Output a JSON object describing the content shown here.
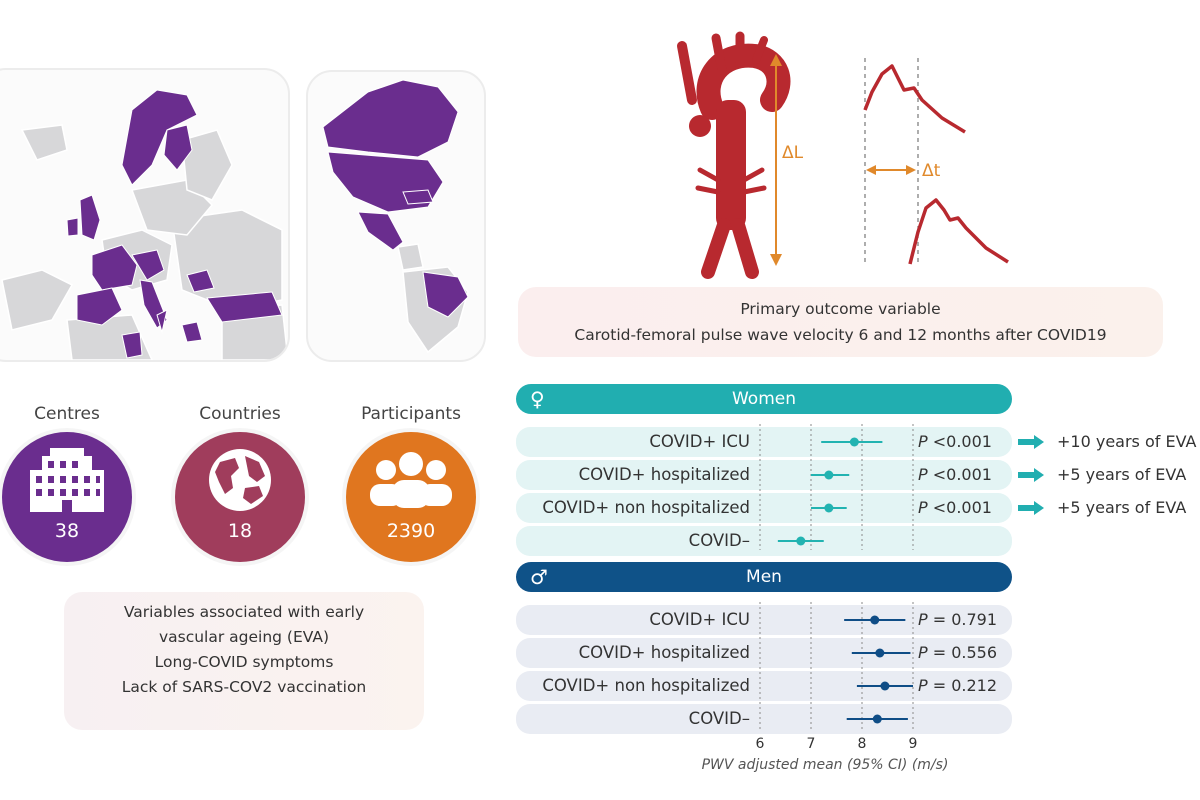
{
  "stats": [
    {
      "label": "Centres",
      "value": "38",
      "icon": "building-icon",
      "color": "#6a2d8e"
    },
    {
      "label": "Countries",
      "value": "18",
      "icon": "globe-icon",
      "color": "#a03d5c"
    },
    {
      "label": "Participants",
      "value": "2390",
      "icon": "people-icon",
      "color": "#e0761f"
    }
  ],
  "variables": {
    "line1": "Variables associated with early",
    "line2": "vascular ageing (EVA)",
    "line3": "Long-COVID symptoms",
    "line4": "Lack of SARS-COV2 vaccination"
  },
  "pwv_diagram": {
    "delta_l": "ΔL",
    "delta_t": "Δt"
  },
  "outcome": {
    "line1": "Primary outcome variable",
    "line2": "Carotid-femoral pulse wave velocity 6 and 12 months after COVID19"
  },
  "chart_data": {
    "type": "forest",
    "x_ticks": [
      "6",
      "7",
      "8",
      "9"
    ],
    "xlim": [
      5.5,
      9.5
    ],
    "xlabel": "PWV adjusted mean (95% CI) (m/s)",
    "groups": [
      {
        "name": "Women",
        "symbol": "♀",
        "header_color": "#21aeb0",
        "band_color": "#e3f4f4",
        "point_color": "#22b3b1",
        "rows": [
          {
            "label": "COVID+ ICU",
            "mean": 7.85,
            "ci": [
              7.2,
              8.4
            ],
            "p_label": "P",
            "p_value": " <0.001",
            "eva": "+10 years of EVA"
          },
          {
            "label": "COVID+ hospitalized",
            "mean": 7.35,
            "ci": [
              7.0,
              7.75
            ],
            "p_label": "P",
            "p_value": " <0.001",
            "eva": "+5 years of EVA"
          },
          {
            "label": "COVID+ non hospitalized",
            "mean": 7.35,
            "ci": [
              7.0,
              7.7
            ],
            "p_label": "P",
            "p_value": " <0.001",
            "eva": "+5 years of EVA"
          },
          {
            "label": "COVID–",
            "mean": 6.8,
            "ci": [
              6.35,
              7.25
            ],
            "p_label": "",
            "p_value": "",
            "eva": ""
          }
        ]
      },
      {
        "name": "Men",
        "symbol": "♂",
        "header_color": "#0f5288",
        "band_color": "#e9ecf3",
        "point_color": "#0f4d86",
        "rows": [
          {
            "label": "COVID+ ICU",
            "mean": 8.25,
            "ci": [
              7.65,
              8.85
            ],
            "p_label": "P",
            "p_value": " = 0.791",
            "eva": ""
          },
          {
            "label": "COVID+ hospitalized",
            "mean": 8.35,
            "ci": [
              7.8,
              8.95
            ],
            "p_label": "P",
            "p_value": " = 0.556",
            "eva": ""
          },
          {
            "label": "COVID+ non hospitalized",
            "mean": 8.45,
            "ci": [
              7.9,
              9.0
            ],
            "p_label": "P",
            "p_value": " = 0.212",
            "eva": ""
          },
          {
            "label": "COVID–",
            "mean": 8.3,
            "ci": [
              7.7,
              8.9
            ],
            "p_label": "",
            "p_value": "",
            "eva": ""
          }
        ]
      }
    ]
  },
  "colors": {
    "map_highlight": "#6a2d8e",
    "map_base": "#d7d7d9",
    "artery": "#b8292f",
    "delta_arrow": "#e0892b",
    "eva_arrow": "#21aeb0"
  }
}
